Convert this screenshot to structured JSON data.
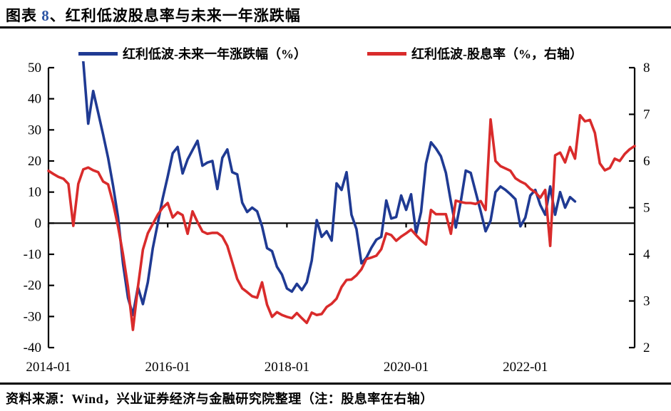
{
  "header": {
    "title_prefix": "图表 ",
    "title_number": "8",
    "title_rest": "、红利低波股息率与未来一年涨跌幅",
    "number_color": "#2d55a5"
  },
  "legend": {
    "items": [
      {
        "label": "红利低波-未来一年涨跌幅（%）",
        "color": "#1f3a93"
      },
      {
        "label": "红利低波-股息率（%，右轴）",
        "color": "#d92b2b"
      }
    ]
  },
  "footer": {
    "text": "资料来源：Wind，兴业证券经济与金融研究院整理（注：股息率在右轴）"
  },
  "chart_data": {
    "type": "line",
    "title": "红利低波股息率与未来一年涨跌幅",
    "x_unit": "month",
    "x_start": "2014-01",
    "x_tick_labels": [
      "2014-01",
      "2016-01",
      "2018-01",
      "2020-01",
      "2022-01"
    ],
    "x_tick_month_index": [
      0,
      24,
      48,
      72,
      96
    ],
    "total_months": 118,
    "left_axis": {
      "min": -40,
      "max": 50,
      "step": 10,
      "ticks": [
        50,
        40,
        30,
        20,
        10,
        0,
        -10,
        -20,
        -30,
        -40
      ]
    },
    "right_axis": {
      "min": 2,
      "max": 8,
      "step": 1,
      "ticks": [
        8,
        7,
        6,
        5,
        4,
        3,
        2
      ]
    },
    "grid": false,
    "zero_baseline": true,
    "legend_position": "top",
    "series": [
      {
        "name": "红利低波-未来一年涨跌幅（%）",
        "axis": "left",
        "color": "#1f3a93",
        "start_month": 6,
        "values": [
          56,
          52,
          32,
          42.5,
          35.5,
          28.5,
          21,
          12,
          2,
          -13,
          -24,
          -29.5,
          -20.5,
          -26,
          -19,
          -8,
          0,
          8,
          15,
          22.5,
          24.5,
          16,
          20.5,
          23.5,
          26.5,
          18.5,
          19.5,
          20,
          11,
          21,
          23.7,
          16.4,
          15.7,
          6.6,
          3.6,
          5,
          3.8,
          -1,
          -8,
          -9,
          -14,
          -16.5,
          -21,
          -22,
          -19.5,
          -21.5,
          -19,
          -12,
          1,
          -4.4,
          -2.6,
          -5.6,
          12.8,
          10.7,
          16.4,
          2.7,
          -1.9,
          -12.9,
          -11.1,
          -7.9,
          -5.3,
          -4.4,
          7.3,
          1.5,
          2,
          8.9,
          4.3,
          9.3,
          -3.3,
          3.6,
          19.2,
          26,
          24,
          21.5,
          16.2,
          7,
          -1.4,
          7,
          16.9,
          16.2,
          10,
          3.8,
          -2.6,
          0.8,
          10,
          11.8,
          10.7,
          9.3,
          7.7,
          -1,
          1.8,
          8.9,
          10.7,
          5.9,
          2.7,
          11.8,
          2.7,
          10,
          5,
          8.4,
          7
        ]
      },
      {
        "name": "红利低波-股息率（%，右轴）",
        "axis": "right",
        "color": "#d92b2b",
        "start_month": 0,
        "values": [
          5.79,
          5.72,
          5.66,
          5.62,
          5.51,
          4.61,
          5.51,
          5.82,
          5.86,
          5.8,
          5.76,
          5.56,
          5.5,
          5.1,
          4.6,
          4,
          3.3,
          2.38,
          3.3,
          4.1,
          4.45,
          4.65,
          4.85,
          5,
          5.1,
          4.79,
          4.9,
          4.84,
          4.44,
          4.92,
          4.69,
          4.49,
          4.44,
          4.46,
          4.46,
          4.38,
          4.18,
          3.83,
          3.47,
          3.27,
          3.19,
          3.1,
          3.07,
          3.4,
          2.92,
          2.66,
          2.76,
          2.7,
          2.66,
          2.63,
          2.74,
          2.63,
          2.53,
          2.75,
          2.7,
          2.72,
          2.87,
          2.94,
          3.05,
          3.3,
          3.45,
          3.46,
          3.55,
          3.68,
          3.9,
          3.93,
          3.97,
          4.11,
          4.45,
          4.41,
          4.29,
          4.38,
          4.45,
          4.53,
          4.41,
          4.3,
          4.21,
          4.95,
          4.86,
          4.86,
          4.86,
          4.44,
          5.15,
          5.12,
          5.1,
          5.1,
          5.08,
          5.14,
          4.95,
          6.89,
          6,
          5.89,
          5.84,
          5.79,
          5.63,
          5.56,
          5.51,
          5.4,
          5.33,
          5.21,
          5.38,
          4.18,
          6.12,
          6.18,
          5.97,
          6.3,
          6.05,
          6.98,
          6.85,
          6.88,
          6.6,
          5.95,
          5.8,
          5.85,
          6.05,
          6,
          6.15,
          6.25,
          6.32
        ]
      }
    ]
  }
}
